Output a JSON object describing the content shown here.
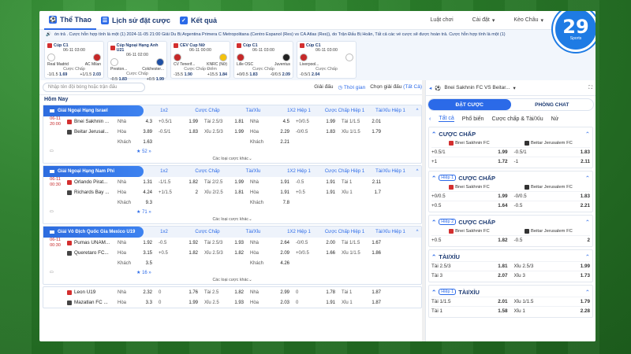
{
  "nav": {
    "items": [
      {
        "label": "Thể Thao",
        "icon": "soccer-ball-icon",
        "active": true
      },
      {
        "label": "Lịch sử đặt cược",
        "icon": "history-icon",
        "active": false
      },
      {
        "label": "Kết quả",
        "icon": "result-icon",
        "active": false
      }
    ],
    "right": [
      {
        "label": "Luật chơi",
        "icon": "rules-icon"
      },
      {
        "label": "Cài đặt",
        "icon": "settings-icon"
      },
      {
        "label": "Kèo Châu",
        "icon": "chevron-down-icon"
      }
    ]
  },
  "logo": {
    "number": "29",
    "sub": "Sports"
  },
  "ticker": "ón trả . Cược hỗn hợp tính là một (1)         2024-11-05 21:00 Giải Du Bị Argentina Primera C Metropolitana (Centro Espanol (Res) vs CA Atlas (Res)), do Trận Đấu Bị Hoãn, Tất cả các vé cược sẽ được hoàn trả. Cược hỗn hợp tính là một (1)",
  "carousel": [
    {
      "league": "Cúp C1",
      "time": "06-11 03:00",
      "home": "Real Madrid",
      "away": "AC Milan",
      "bet": "Cược Chấp",
      "o1": "-1/1.5",
      "v1": "1.69",
      "o2": "+1/1.5",
      "v2": "2.03",
      "hc": "#ffffff",
      "ac": "#c62828"
    },
    {
      "league": "Cúp Ngoại Hạng Anh U21",
      "time": "06-11 02:00",
      "home": "Preston...",
      "away": "Colchester...",
      "bet": "Cược Chấp",
      "o1": "-0.5",
      "v1": "1.83",
      "o2": "+0.5",
      "v2": "1.99",
      "hc": "#ffffff",
      "ac": "#1e4fa3"
    },
    {
      "league": "CEV Cup Nữ",
      "time": "06-11 00:00",
      "home": "CV Tenerif...",
      "away": "KNRC (Nữ)",
      "bet": "Cược Chấp Điểm",
      "o1": "-15.5",
      "v1": "1.90",
      "o2": "+15.5",
      "v2": "1.84",
      "hc": "#c62828",
      "ac": "#f4c20d"
    },
    {
      "league": "Cúp C1",
      "time": "06-11 03:00",
      "home": "Lille OSC",
      "away": "Juventus",
      "bet": "Cược Chấp",
      "o1": "+0/0.5",
      "v1": "1.83",
      "o2": "-0/0.5",
      "v2": "2.09",
      "hc": "#c62828",
      "ac": "#222222"
    },
    {
      "league": "Cúp C1",
      "time": "06-11 03:00",
      "home": "Liverpool...",
      "away": "",
      "bet": "Cược Chấp",
      "o1": "-0.5/1",
      "v1": "2.04",
      "o2": "",
      "v2": "",
      "hc": "#c62828",
      "ac": "#ffffff"
    }
  ],
  "search": {
    "placeholder": "Nhập tên đội bóng hoặc trận đấu"
  },
  "filters": {
    "league": "Giải đấu",
    "time": "Thời gian",
    "pick": "Chọn giải đấu",
    "all": "(Tất Cả)"
  },
  "today": "Hôm Nay",
  "columns": [
    "1x2",
    "Cược Chấp",
    "Tài/Xỉu",
    "1X2 Hiệp 1",
    "Cược Chấp Hiệp 1",
    "Tài/Xỉu Hiệp 1"
  ],
  "more_label": "Các loại cược khác",
  "leagues": [
    {
      "name": "Giải Ngoại Hạng Israel",
      "time": "06-11\n20:00",
      "teams": [
        "Bnei Sakhnin ...",
        "Beitar Jerusal..."
      ],
      "count": "52",
      "rows": [
        [
          "Nhà",
          "4.3",
          "+0.5/1",
          "1.99",
          "Tài 2.5/3",
          "1.81",
          "Nhà",
          "4.5",
          "+0/0.5",
          "1.99",
          "Tài 1/1.5",
          "2.01"
        ],
        [
          "Hòa",
          "3.89",
          "-0.5/1",
          "1.83",
          "Xỉu 2.5/3",
          "1.99",
          "Hòa",
          "2.29",
          "-0/0.5",
          "1.83",
          "Xỉu 1/1.5",
          "1.79"
        ],
        [
          "Khách",
          "1.63",
          "",
          "",
          "",
          "",
          "Khách",
          "2.21",
          "",
          "",
          "",
          ""
        ]
      ]
    },
    {
      "name": "Giải Ngoại Hạng Nam Phi",
      "time": "06-11\n00:30",
      "teams": [
        "Orlando Pirat...",
        "Richards Bay ..."
      ],
      "count": "71",
      "rows": [
        [
          "Nhà",
          "1.31",
          "-1/1.5",
          "1.82",
          "Tài 2/2.5",
          "1.99",
          "Nhà",
          "1.91",
          "-0.5",
          "1.91",
          "Tài 1",
          "2.11"
        ],
        [
          "Hòa",
          "4.24",
          "+1/1.5",
          "2",
          "Xỉu 2/2.5",
          "1.81",
          "Hòa",
          "1.91",
          "+0.5",
          "1.91",
          "Xỉu 1",
          "1.7"
        ],
        [
          "Khách",
          "9.3",
          "",
          "",
          "",
          "",
          "Khách",
          "7.8",
          "",
          "",
          "",
          ""
        ]
      ]
    },
    {
      "name": "Giải Vô Địch Quốc Gia Mexico U19",
      "time": "06-11\n00:30",
      "teams": [
        "Pumas UNAM...",
        "Queretaro FC..."
      ],
      "count": "16",
      "rows": [
        [
          "Nhà",
          "1.92",
          "-0.5",
          "1.92",
          "Tài 2.5/3",
          "1.93",
          "Nhà",
          "2.64",
          "-0/0.5",
          "2.00",
          "Tài 1/1.5",
          "1.67"
        ],
        [
          "Hòa",
          "3.15",
          "+0.5",
          "1.82",
          "Xỉu 2.5/3",
          "1.82",
          "Hòa",
          "2.09",
          "+0/0.5",
          "1.66",
          "Xỉu 1/1.5",
          "1.86"
        ],
        [
          "Khách",
          "3.5",
          "",
          "",
          "",
          "",
          "Khách",
          "4.26",
          "",
          "",
          "",
          ""
        ]
      ]
    },
    {
      "name": "",
      "time": "",
      "teams": [
        "Leon U19",
        "Mazatlan FC ..."
      ],
      "count": "",
      "rows": [
        [
          "Nhà",
          "2.32",
          "0",
          "1.76",
          "Tài 2.5",
          "1.82",
          "Nhà",
          "2.99",
          "0",
          "1.78",
          "Tài 1",
          "1.87"
        ],
        [
          "Hòa",
          "3.3",
          "0",
          "1.99",
          "Xỉu 2.5",
          "1.93",
          "Hòa",
          "2.03",
          "0",
          "1.91",
          "Xỉu 1",
          "1.87"
        ]
      ]
    }
  ],
  "right": {
    "match": "Bnei Sakhnin FC VS Beitar...",
    "tabs": [
      "ĐẶT CƯỢC",
      "PHÒNG CHAT"
    ],
    "subtabs": [
      "Tất cả",
      "Phổ biến",
      "Cược chấp & Tài/Xỉu",
      "Nử"
    ],
    "blocks": [
      {
        "tag": "",
        "title": "CƯỢC CHẤP",
        "home": "Bnei Sakhnin FC",
        "away": "Beitar Jerusalem FC",
        "rows": [
          [
            "+0.5/1",
            "1.99",
            "-0.5/1",
            "1.83"
          ],
          [
            "+1",
            "1.72",
            "-1",
            "2.11"
          ]
        ]
      },
      {
        "tag": "Hiệp 1",
        "title": "CƯỢC CHẤP",
        "home": "Bnei Sakhnin FC",
        "away": "Beitar Jerusalem FC",
        "rows": [
          [
            "+0/0.5",
            "1.99",
            "-0/0.5",
            "1.83"
          ],
          [
            "+0.5",
            "1.64",
            "-0.5",
            "2.21"
          ]
        ]
      },
      {
        "tag": "Hiệp 2",
        "title": "CƯỢC CHẤP",
        "home": "Bnei Sakhnin FC",
        "away": "Beitar Jerusalem FC",
        "rows": [
          [
            "+0.5",
            "1.82",
            "-0.5",
            "2"
          ]
        ]
      },
      {
        "tag": "",
        "title": "TÀI/XỈU",
        "home": "",
        "away": "",
        "rows": [
          [
            "Tài 2.5/3",
            "1.81",
            "Xỉu 2.5/3",
            "1.99"
          ],
          [
            "Tài 3",
            "2.07",
            "Xỉu 3",
            "1.73"
          ]
        ]
      },
      {
        "tag": "Hiệp 1",
        "title": "TÀI/XỈU",
        "home": "",
        "away": "",
        "rows": [
          [
            "Tài 1/1.5",
            "2.01",
            "Xỉu 1/1.5",
            "1.79"
          ],
          [
            "Tài 1",
            "1.58",
            "Xỉu 1",
            "2.28"
          ]
        ]
      }
    ]
  }
}
